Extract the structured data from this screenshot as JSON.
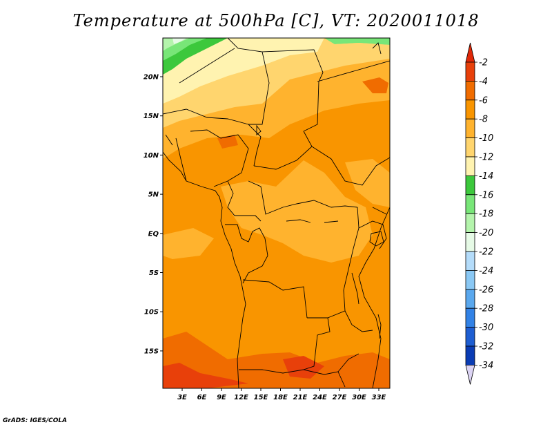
{
  "title": "Temperature at 500hPa [C], VT: 2020011018",
  "credit": "GrADS: IGES/COLA",
  "map": {
    "lat_ticks": [
      "20N",
      "15N",
      "10N",
      "5N",
      "EQ",
      "5S",
      "10S",
      "15S"
    ],
    "lon_ticks": [
      "3E",
      "6E",
      "9E",
      "12E",
      "15E",
      "18E",
      "21E",
      "24E",
      "27E",
      "30E",
      "33E"
    ],
    "lat_range": [
      -20,
      24
    ],
    "lon_range": [
      0,
      35
    ]
  },
  "colorbar": {
    "labels": [
      "-2",
      "-4",
      "-6",
      "-8",
      "-10",
      "-12",
      "-14",
      "-16",
      "-18",
      "-20",
      "-22",
      "-24",
      "-26",
      "-28",
      "-30",
      "-32",
      "-34"
    ],
    "colors": [
      "#e8400a",
      "#f06c00",
      "#f99500",
      "#ffb32e",
      "#ffd56e",
      "#fff3b0",
      "#3cc83c",
      "#78e678",
      "#b4f4ac",
      "#e6fae6",
      "#b4dcfa",
      "#8ac8f4",
      "#5aa8ee",
      "#3282e6",
      "#1e5ed2",
      "#0a3cb4",
      "#0a1e7a"
    ],
    "top_arrow_color": "#e02808",
    "bottom_arrow_color": "#dcd4f4"
  }
}
